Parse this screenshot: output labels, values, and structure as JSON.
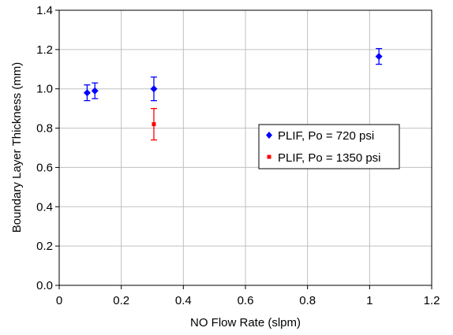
{
  "chart_data": {
    "type": "scatter",
    "xlabel": "NO Flow Rate (slpm)",
    "ylabel": "Boundary Layer Thickness (mm)",
    "xlim": [
      0,
      1.2
    ],
    "ylim": [
      0,
      1.4
    ],
    "x_ticks": [
      "0",
      "0.2",
      "0.4",
      "0.6",
      "0.8",
      "1",
      "1.2"
    ],
    "y_ticks": [
      "0.0",
      "0.2",
      "0.4",
      "0.6",
      "0.8",
      "1.0",
      "1.2",
      "1.4"
    ],
    "grid": true,
    "legend_position": "right",
    "series": [
      {
        "name": "PLIF, Po = 720 psi",
        "marker": "diamond",
        "color": "#0000ff",
        "points": [
          {
            "x": 0.09,
            "y": 0.98,
            "err": 0.04
          },
          {
            "x": 0.115,
            "y": 0.99,
            "err": 0.04
          },
          {
            "x": 0.305,
            "y": 1.0,
            "err": 0.06
          },
          {
            "x": 1.03,
            "y": 1.165,
            "err": 0.04
          }
        ]
      },
      {
        "name": "PLIF, Po = 1350 psi",
        "marker": "square",
        "color": "#ff0000",
        "points": [
          {
            "x": 0.305,
            "y": 0.82,
            "err": 0.08
          }
        ]
      }
    ]
  }
}
